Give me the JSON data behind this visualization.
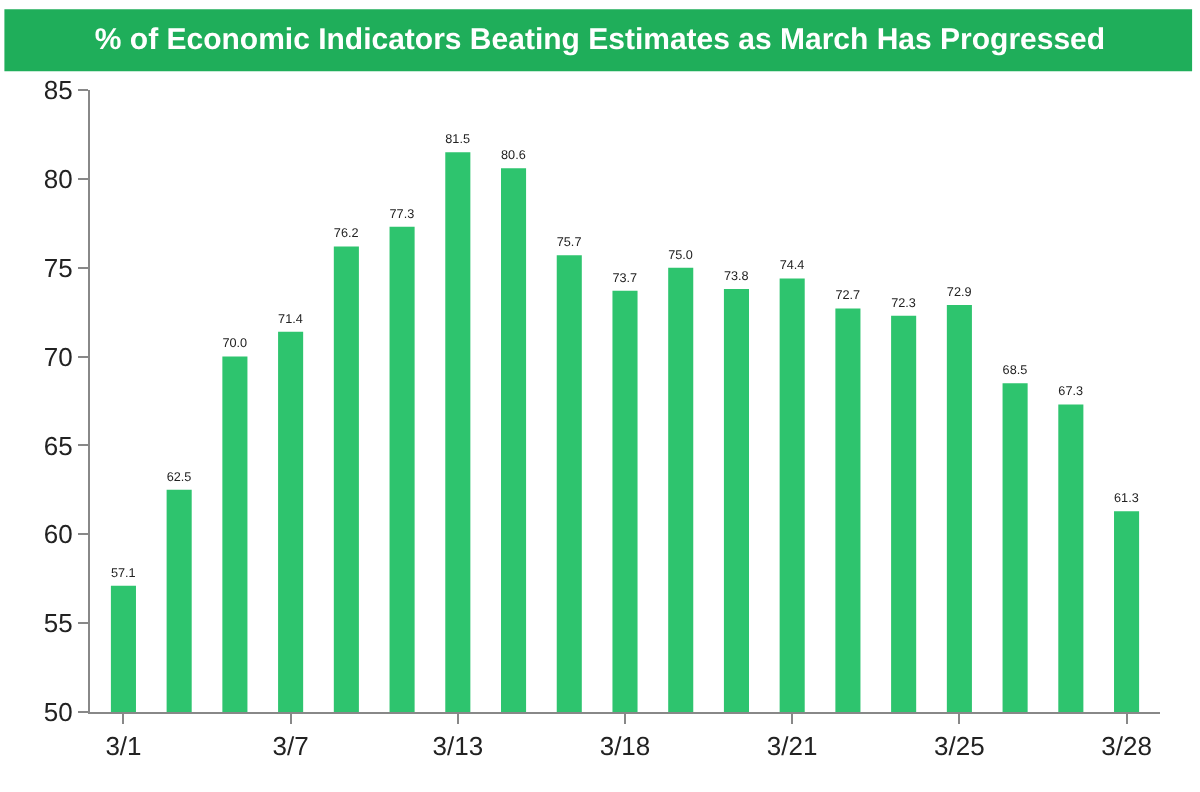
{
  "chart_data": {
    "type": "bar",
    "title": "% of Economic Indicators Beating Estimates as March Has Progressed",
    "categories": [
      "3/1",
      null,
      null,
      "3/7",
      null,
      null,
      "3/13",
      null,
      null,
      "3/18",
      null,
      null,
      "3/21",
      null,
      null,
      "3/25",
      null,
      null,
      "3/28"
    ],
    "values": [
      57.1,
      62.5,
      70.0,
      71.4,
      76.2,
      77.3,
      81.5,
      80.6,
      75.7,
      73.7,
      75.0,
      73.8,
      74.4,
      72.7,
      72.3,
      72.9,
      68.5,
      67.3,
      61.3
    ],
    "value_labels": [
      "57.1",
      "62.5",
      "70.0",
      "71.4",
      "76.2",
      "77.3",
      "81.5",
      "80.6",
      "75.7",
      "73.7",
      "75.0",
      "73.8",
      "74.4",
      "72.7",
      "72.3",
      "72.9",
      "68.5",
      "67.3",
      "61.3"
    ],
    "color": "#2ec46e",
    "ylim": [
      50,
      85
    ],
    "yticks": [
      50,
      55,
      60,
      65,
      70,
      75,
      80,
      85
    ]
  }
}
